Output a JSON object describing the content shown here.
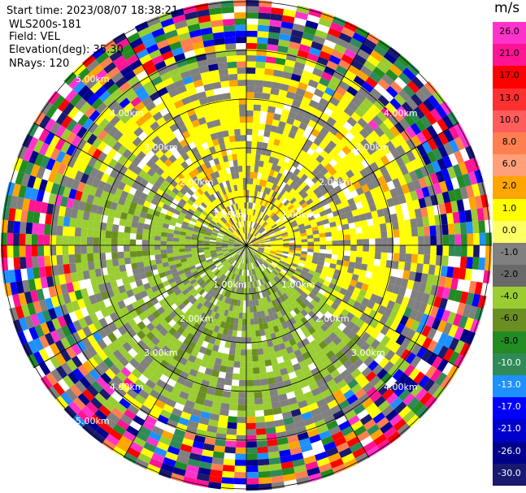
{
  "header": {
    "start_time": "Start time: 2023/08/07 18:38:21",
    "instrument": "WLS200s-181",
    "field": "Field: VEL",
    "elevation": "Elevation(deg): 35.30",
    "nrays": "NRays: 120"
  },
  "colorbar": {
    "unit": "m/s",
    "ticks": [
      "26.0",
      "21.0",
      "17.0",
      "13.0",
      "10.0",
      "8.0",
      "6.0",
      "2.0",
      "1.0",
      "0.0",
      "-1.0",
      "-2.0",
      "-4.0",
      "-6.0",
      "-8.0",
      "-10.0",
      "-13.0",
      "-17.0",
      "-21.0",
      "-26.0",
      "-30.0"
    ],
    "colors": [
      "#ff33cc",
      "#ff1493",
      "#ff0000",
      "#ff3030",
      "#ff5c5c",
      "#ff7f50",
      "#ffa07a",
      "#ffa500",
      "#ffff00",
      "#ffff66",
      "#808080",
      "#696969",
      "#9acd32",
      "#6b8e23",
      "#228b22",
      "#2e8b57",
      "#1e90ff",
      "#0000ff",
      "#0000cd",
      "#00008b",
      "#191970"
    ]
  },
  "range_rings": {
    "north_labels": [
      "1.00km",
      "2.00km",
      "3.00km",
      "4.00km",
      "5.00km"
    ],
    "south_labels": [
      "1.00km",
      "2.00km",
      "3.00km",
      "4.00km",
      "5.00km"
    ]
  },
  "chart_data": {
    "type": "heatmap",
    "subtype": "polar-ppi",
    "field": "VEL",
    "unit": "m/s",
    "rays": 120,
    "ranges_km": [
      1,
      2,
      3,
      4,
      5
    ],
    "colorbar_min": -30.0,
    "colorbar_max": 26.0,
    "pattern": "near-zero gray; positive yellow to north/east; negative olive-green to south/west; noisy multicolor beyond ~3.5 km"
  }
}
